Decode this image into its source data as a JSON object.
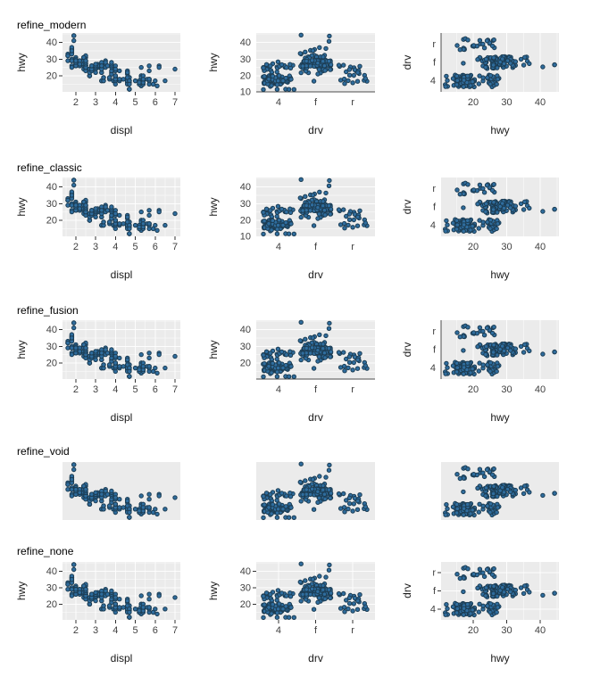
{
  "rows": [
    {
      "title": "refine_modern",
      "theme": "modern"
    },
    {
      "title": "refine_classic",
      "theme": "classic"
    },
    {
      "title": "refine_fusion",
      "theme": "fusion"
    },
    {
      "title": "refine_void",
      "theme": "void"
    },
    {
      "title": "refine_none",
      "theme": "none"
    }
  ],
  "chart_data": {
    "type": "scatter",
    "dataset_note": "mpg cars dataset: columns displ (engine litres), hwy (highway mpg), drv (drive: 4/f/r); same 234 points drawn in all 15 panels",
    "panel_bg": "#ebebeb",
    "grid_color": "#ffffff",
    "axis_line_color": "#4d4d4d",
    "tick_color": "#333333",
    "tick_label_color": "#404040",
    "axis_title_color": "#1a1a1a",
    "point_fill": "#2f6d9e",
    "point_stroke": "#1c3d54",
    "panels": [
      {
        "xlabel": "displ",
        "ylabel": "hwy",
        "xticks": [
          2,
          3,
          4,
          5,
          6,
          7
        ],
        "yticks": [
          20,
          30,
          40
        ],
        "x_range": [
          1.33,
          7.27
        ],
        "y_range": [
          10.4,
          45.6
        ]
      },
      {
        "xlabel": "drv",
        "ylabel": "hwy",
        "categories": [
          "4",
          "f",
          "r"
        ],
        "y_range": [
          10.4,
          45.6
        ]
      },
      {
        "xlabel": "hwy",
        "ylabel": "drv",
        "xticks": [
          20,
          30,
          40
        ],
        "categories": [
          "r",
          "f",
          "4"
        ],
        "x_range": [
          10.4,
          45.6
        ]
      }
    ],
    "themes": {
      "modern": {
        "labels": true,
        "cols": [
          {
            "grid_h": true,
            "grid_h_minor": true,
            "grid_v": false,
            "grid_v_minor": false,
            "ticks_x": true,
            "ticks_y": true,
            "axis_lines": []
          },
          {
            "grid_h": true,
            "grid_h_minor": true,
            "cat_grid": false,
            "ticks_x": false,
            "ticks_y": false,
            "axis_lines": [
              "bottom"
            ],
            "yticks": [
              10,
              20,
              30,
              40
            ]
          },
          {
            "grid_v": true,
            "grid_v_minor": true,
            "cat_grid": false,
            "ticks_x": false,
            "ticks_y": false,
            "axis_lines": [
              "left"
            ]
          }
        ]
      },
      "classic": {
        "labels": true,
        "cols": [
          {
            "grid_h": true,
            "grid_h_minor": true,
            "grid_v": true,
            "grid_v_minor": true,
            "ticks_x": true,
            "ticks_y": true,
            "axis_lines": []
          },
          {
            "grid_h": true,
            "grid_h_minor": true,
            "cat_grid": false,
            "ticks_x": false,
            "ticks_y": false,
            "axis_lines": [],
            "yticks": [
              10,
              20,
              30,
              40
            ]
          },
          {
            "grid_v": true,
            "grid_v_minor": true,
            "cat_grid": false,
            "ticks_x": false,
            "ticks_y": false,
            "axis_lines": []
          }
        ]
      },
      "fusion": {
        "labels": true,
        "cols": [
          {
            "grid_h": true,
            "grid_h_minor": true,
            "grid_v": true,
            "grid_v_minor": true,
            "ticks_x": true,
            "ticks_y": true,
            "axis_lines": []
          },
          {
            "grid_h": true,
            "grid_h_minor": true,
            "cat_grid": false,
            "ticks_x": false,
            "ticks_y": false,
            "axis_lines": [
              "bottom"
            ],
            "yticks": [
              20,
              30,
              40
            ]
          },
          {
            "grid_v": true,
            "grid_v_minor": true,
            "cat_grid": false,
            "ticks_x": false,
            "ticks_y": false,
            "axis_lines": [
              "left"
            ]
          }
        ]
      },
      "void": {
        "labels": false,
        "cols": [
          {
            "grid_h": false,
            "grid_v": false,
            "ticks_x": false,
            "ticks_y": false,
            "axis_lines": []
          },
          {
            "grid_h": false,
            "cat_grid": false,
            "ticks_x": false,
            "ticks_y": false,
            "axis_lines": []
          },
          {
            "grid_v": false,
            "cat_grid": false,
            "ticks_x": false,
            "ticks_y": false,
            "axis_lines": []
          }
        ]
      },
      "none": {
        "labels": true,
        "cols": [
          {
            "grid_h": true,
            "grid_h_minor": true,
            "grid_v": true,
            "grid_v_minor": true,
            "ticks_x": true,
            "ticks_y": true,
            "axis_lines": []
          },
          {
            "grid_h": true,
            "grid_h_minor": true,
            "cat_grid": true,
            "ticks_x": true,
            "ticks_y": true,
            "axis_lines": [],
            "yticks": [
              20,
              30,
              40
            ]
          },
          {
            "grid_v": true,
            "grid_v_minor": true,
            "cat_grid": true,
            "ticks_x": true,
            "ticks_y": true,
            "axis_lines": []
          }
        ]
      }
    },
    "points": [
      [
        1.8,
        29,
        "f"
      ],
      [
        1.8,
        29,
        "f"
      ],
      [
        2.0,
        31,
        "f"
      ],
      [
        2.0,
        30,
        "f"
      ],
      [
        2.8,
        26,
        "f"
      ],
      [
        2.8,
        26,
        "f"
      ],
      [
        3.1,
        27,
        "f"
      ],
      [
        1.8,
        26,
        "4"
      ],
      [
        1.8,
        25,
        "4"
      ],
      [
        2.0,
        28,
        "4"
      ],
      [
        2.0,
        27,
        "4"
      ],
      [
        2.8,
        25,
        "4"
      ],
      [
        2.8,
        25,
        "4"
      ],
      [
        3.1,
        25,
        "4"
      ],
      [
        3.1,
        25,
        "4"
      ],
      [
        2.8,
        24,
        "4"
      ],
      [
        3.1,
        25,
        "4"
      ],
      [
        4.2,
        23,
        "4"
      ],
      [
        5.3,
        20,
        "r"
      ],
      [
        5.3,
        15,
        "r"
      ],
      [
        5.3,
        20,
        "r"
      ],
      [
        5.7,
        17,
        "r"
      ],
      [
        6.0,
        17,
        "r"
      ],
      [
        5.7,
        26,
        "r"
      ],
      [
        5.7,
        23,
        "r"
      ],
      [
        6.2,
        26,
        "r"
      ],
      [
        6.2,
        25,
        "r"
      ],
      [
        7.0,
        24,
        "r"
      ],
      [
        5.3,
        19,
        "4"
      ],
      [
        5.3,
        14,
        "4"
      ],
      [
        5.7,
        15,
        "4"
      ],
      [
        6.5,
        17,
        "4"
      ],
      [
        2.4,
        27,
        "f"
      ],
      [
        2.4,
        30,
        "f"
      ],
      [
        3.1,
        26,
        "f"
      ],
      [
        3.5,
        29,
        "f"
      ],
      [
        3.6,
        26,
        "f"
      ],
      [
        2.4,
        24,
        "f"
      ],
      [
        3.0,
        24,
        "f"
      ],
      [
        3.3,
        22,
        "f"
      ],
      [
        3.3,
        22,
        "f"
      ],
      [
        3.3,
        24,
        "f"
      ],
      [
        3.3,
        24,
        "f"
      ],
      [
        3.3,
        17,
        "f"
      ],
      [
        3.8,
        22,
        "f"
      ],
      [
        3.8,
        21,
        "f"
      ],
      [
        3.8,
        23,
        "f"
      ],
      [
        4.0,
        23,
        "f"
      ],
      [
        3.7,
        19,
        "4"
      ],
      [
        3.7,
        18,
        "4"
      ],
      [
        3.9,
        17,
        "4"
      ],
      [
        3.9,
        17,
        "4"
      ],
      [
        4.7,
        19,
        "4"
      ],
      [
        4.7,
        19,
        "4"
      ],
      [
        4.7,
        12,
        "4"
      ],
      [
        5.2,
        17,
        "4"
      ],
      [
        5.2,
        15,
        "4"
      ],
      [
        3.9,
        17,
        "4"
      ],
      [
        4.7,
        17,
        "4"
      ],
      [
        4.7,
        12,
        "4"
      ],
      [
        4.7,
        17,
        "4"
      ],
      [
        5.2,
        16,
        "4"
      ],
      [
        5.7,
        18,
        "4"
      ],
      [
        5.9,
        15,
        "4"
      ],
      [
        4.7,
        16,
        "4"
      ],
      [
        4.7,
        12,
        "4"
      ],
      [
        4.7,
        17,
        "4"
      ],
      [
        4.7,
        17,
        "4"
      ],
      [
        4.7,
        16,
        "4"
      ],
      [
        4.7,
        12,
        "4"
      ],
      [
        5.2,
        15,
        "4"
      ],
      [
        5.2,
        16,
        "4"
      ],
      [
        5.7,
        17,
        "4"
      ],
      [
        5.9,
        15,
        "4"
      ],
      [
        4.6,
        17,
        "r"
      ],
      [
        5.4,
        17,
        "r"
      ],
      [
        5.4,
        18,
        "r"
      ],
      [
        4.0,
        17,
        "4"
      ],
      [
        4.0,
        19,
        "4"
      ],
      [
        4.0,
        17,
        "4"
      ],
      [
        4.0,
        19,
        "4"
      ],
      [
        4.6,
        19,
        "4"
      ],
      [
        5.0,
        17,
        "4"
      ],
      [
        4.2,
        17,
        "4"
      ],
      [
        4.2,
        17,
        "4"
      ],
      [
        4.6,
        16,
        "4"
      ],
      [
        4.6,
        16,
        "4"
      ],
      [
        4.6,
        17,
        "4"
      ],
      [
        5.4,
        15,
        "4"
      ],
      [
        5.4,
        17,
        "4"
      ],
      [
        3.8,
        26,
        "r"
      ],
      [
        3.8,
        25,
        "r"
      ],
      [
        4.0,
        26,
        "r"
      ],
      [
        4.0,
        24,
        "r"
      ],
      [
        4.6,
        21,
        "r"
      ],
      [
        4.6,
        22,
        "r"
      ],
      [
        4.6,
        23,
        "r"
      ],
      [
        4.6,
        22,
        "r"
      ],
      [
        5.4,
        20,
        "r"
      ],
      [
        1.6,
        33,
        "f"
      ],
      [
        1.6,
        32,
        "f"
      ],
      [
        1.6,
        32,
        "f"
      ],
      [
        1.6,
        29,
        "f"
      ],
      [
        1.6,
        32,
        "f"
      ],
      [
        1.8,
        34,
        "f"
      ],
      [
        1.8,
        36,
        "f"
      ],
      [
        1.8,
        36,
        "f"
      ],
      [
        2.0,
        29,
        "f"
      ],
      [
        2.4,
        26,
        "f"
      ],
      [
        2.4,
        27,
        "f"
      ],
      [
        2.4,
        30,
        "f"
      ],
      [
        2.4,
        31,
        "f"
      ],
      [
        2.5,
        26,
        "f"
      ],
      [
        2.5,
        26,
        "f"
      ],
      [
        3.3,
        28,
        "f"
      ],
      [
        2.0,
        26,
        "f"
      ],
      [
        2.0,
        29,
        "f"
      ],
      [
        2.0,
        28,
        "f"
      ],
      [
        2.0,
        27,
        "f"
      ],
      [
        2.7,
        24,
        "f"
      ],
      [
        2.7,
        24,
        "f"
      ],
      [
        2.7,
        24,
        "f"
      ],
      [
        3.0,
        22,
        "4"
      ],
      [
        3.7,
        19,
        "4"
      ],
      [
        4.0,
        20,
        "4"
      ],
      [
        4.7,
        17,
        "4"
      ],
      [
        4.7,
        12,
        "4"
      ],
      [
        4.7,
        19,
        "4"
      ],
      [
        5.7,
        18,
        "4"
      ],
      [
        6.1,
        14,
        "4"
      ],
      [
        4.0,
        15,
        "4"
      ],
      [
        4.2,
        18,
        "4"
      ],
      [
        4.4,
        18,
        "4"
      ],
      [
        4.6,
        15,
        "4"
      ],
      [
        5.4,
        17,
        "r"
      ],
      [
        5.4,
        16,
        "r"
      ],
      [
        5.4,
        18,
        "r"
      ],
      [
        4.0,
        17,
        "4"
      ],
      [
        4.0,
        19,
        "4"
      ],
      [
        4.6,
        19,
        "4"
      ],
      [
        5.0,
        17,
        "4"
      ],
      [
        2.4,
        29,
        "f"
      ],
      [
        2.4,
        27,
        "f"
      ],
      [
        2.5,
        31,
        "f"
      ],
      [
        2.5,
        32,
        "f"
      ],
      [
        3.5,
        27,
        "f"
      ],
      [
        3.5,
        26,
        "f"
      ],
      [
        3.0,
        26,
        "f"
      ],
      [
        3.0,
        25,
        "f"
      ],
      [
        3.5,
        25,
        "f"
      ],
      [
        3.3,
        17,
        "4"
      ],
      [
        3.3,
        17,
        "4"
      ],
      [
        4.0,
        20,
        "4"
      ],
      [
        5.6,
        18,
        "4"
      ],
      [
        3.1,
        26,
        "f"
      ],
      [
        3.8,
        26,
        "f"
      ],
      [
        3.8,
        27,
        "f"
      ],
      [
        3.8,
        28,
        "f"
      ],
      [
        5.3,
        25,
        "f"
      ],
      [
        2.5,
        25,
        "4"
      ],
      [
        2.5,
        24,
        "4"
      ],
      [
        2.5,
        27,
        "4"
      ],
      [
        2.5,
        25,
        "4"
      ],
      [
        2.5,
        26,
        "4"
      ],
      [
        2.5,
        23,
        "4"
      ],
      [
        2.2,
        26,
        "4"
      ],
      [
        2.2,
        26,
        "4"
      ],
      [
        2.5,
        26,
        "4"
      ],
      [
        2.5,
        26,
        "4"
      ],
      [
        2.5,
        25,
        "4"
      ],
      [
        2.5,
        27,
        "4"
      ],
      [
        2.5,
        25,
        "4"
      ],
      [
        2.5,
        27,
        "4"
      ],
      [
        2.7,
        20,
        "4"
      ],
      [
        2.7,
        20,
        "4"
      ],
      [
        3.4,
        19,
        "4"
      ],
      [
        3.4,
        17,
        "4"
      ],
      [
        4.0,
        20,
        "4"
      ],
      [
        4.7,
        17,
        "4"
      ],
      [
        2.2,
        29,
        "f"
      ],
      [
        2.2,
        27,
        "f"
      ],
      [
        2.4,
        31,
        "f"
      ],
      [
        2.4,
        31,
        "f"
      ],
      [
        3.0,
        26,
        "f"
      ],
      [
        3.0,
        26,
        "f"
      ],
      [
        3.5,
        28,
        "f"
      ],
      [
        2.2,
        29,
        "f"
      ],
      [
        2.2,
        27,
        "f"
      ],
      [
        2.4,
        31,
        "f"
      ],
      [
        2.4,
        31,
        "f"
      ],
      [
        3.0,
        26,
        "f"
      ],
      [
        3.0,
        27,
        "f"
      ],
      [
        3.3,
        26,
        "f"
      ],
      [
        1.8,
        30,
        "f"
      ],
      [
        1.8,
        33,
        "f"
      ],
      [
        1.8,
        35,
        "f"
      ],
      [
        1.8,
        37,
        "f"
      ],
      [
        1.8,
        35,
        "f"
      ],
      [
        4.7,
        15,
        "4"
      ],
      [
        5.7,
        18,
        "4"
      ],
      [
        2.7,
        20,
        "4"
      ],
      [
        2.7,
        20,
        "4"
      ],
      [
        2.7,
        22,
        "4"
      ],
      [
        3.4,
        17,
        "4"
      ],
      [
        3.4,
        19,
        "4"
      ],
      [
        4.0,
        18,
        "4"
      ],
      [
        4.0,
        20,
        "4"
      ],
      [
        2.0,
        29,
        "f"
      ],
      [
        2.0,
        26,
        "f"
      ],
      [
        2.0,
        29,
        "f"
      ],
      [
        2.0,
        29,
        "f"
      ],
      [
        2.8,
        24,
        "f"
      ],
      [
        1.9,
        44,
        "f"
      ],
      [
        2.0,
        29,
        "f"
      ],
      [
        2.0,
        26,
        "f"
      ],
      [
        2.0,
        29,
        "f"
      ],
      [
        2.0,
        29,
        "f"
      ],
      [
        2.5,
        29,
        "f"
      ],
      [
        2.5,
        29,
        "f"
      ],
      [
        2.8,
        23,
        "f"
      ],
      [
        2.8,
        24,
        "f"
      ],
      [
        1.9,
        44,
        "f"
      ],
      [
        1.9,
        41,
        "f"
      ],
      [
        2.0,
        29,
        "f"
      ],
      [
        2.0,
        26,
        "f"
      ],
      [
        2.5,
        28,
        "f"
      ],
      [
        2.5,
        29,
        "f"
      ],
      [
        1.8,
        29,
        "f"
      ],
      [
        1.8,
        29,
        "f"
      ],
      [
        2.0,
        28,
        "f"
      ],
      [
        2.0,
        29,
        "f"
      ],
      [
        2.8,
        26,
        "f"
      ],
      [
        2.8,
        26,
        "f"
      ],
      [
        3.6,
        26,
        "f"
      ]
    ]
  }
}
